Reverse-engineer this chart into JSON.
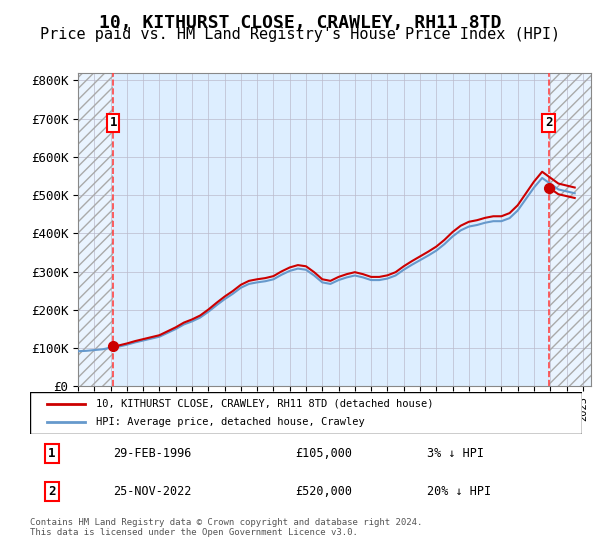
{
  "title": "10, KITHURST CLOSE, CRAWLEY, RH11 8TD",
  "subtitle": "Price paid vs. HM Land Registry's House Price Index (HPI)",
  "ylabel": "",
  "ylim": [
    0,
    820000
  ],
  "yticks": [
    0,
    100000,
    200000,
    300000,
    400000,
    500000,
    600000,
    700000,
    800000
  ],
  "ytick_labels": [
    "£0",
    "£100K",
    "£200K",
    "£300K",
    "£400K",
    "£500K",
    "£600K",
    "£700K",
    "£800K"
  ],
  "xmin": 1994.0,
  "xmax": 2025.5,
  "hpi_color": "#6699cc",
  "price_color": "#cc0000",
  "dashed_color": "#ff4444",
  "bg_color": "#ddeeff",
  "hatch_color": "#cccccc",
  "grid_color": "#bbbbcc",
  "title_fontsize": 13,
  "subtitle_fontsize": 11,
  "label1": "1",
  "label2": "2",
  "point1_x": 1996.16,
  "point1_y": 105000,
  "point2_x": 2022.9,
  "point2_y": 520000,
  "legend_line1": "10, KITHURST CLOSE, CRAWLEY, RH11 8TD (detached house)",
  "legend_line2": "HPI: Average price, detached house, Crawley",
  "anno1_date": "29-FEB-1996",
  "anno1_price": "£105,000",
  "anno1_hpi": "3% ↓ HPI",
  "anno2_date": "25-NOV-2022",
  "anno2_price": "£520,000",
  "anno2_hpi": "20% ↓ HPI",
  "footer": "Contains HM Land Registry data © Crown copyright and database right 2024.\nThis data is licensed under the Open Government Licence v3.0.",
  "hpi_data_x": [
    1994,
    1994.5,
    1995,
    1995.5,
    1996,
    1996.5,
    1997,
    1997.5,
    1998,
    1998.5,
    1999,
    1999.5,
    2000,
    2000.5,
    2001,
    2001.5,
    2002,
    2002.5,
    2003,
    2003.5,
    2004,
    2004.5,
    2005,
    2005.5,
    2006,
    2006.5,
    2007,
    2007.5,
    2008,
    2008.5,
    2009,
    2009.5,
    2010,
    2010.5,
    2011,
    2011.5,
    2012,
    2012.5,
    2013,
    2013.5,
    2014,
    2014.5,
    2015,
    2015.5,
    2016,
    2016.5,
    2017,
    2017.5,
    2018,
    2018.5,
    2019,
    2019.5,
    2020,
    2020.5,
    2021,
    2021.5,
    2022,
    2022.5,
    2023,
    2023.5,
    2024,
    2024.5
  ],
  "hpi_data_y": [
    92000,
    93000,
    95000,
    97000,
    101000,
    104000,
    109000,
    115000,
    120000,
    125000,
    130000,
    140000,
    150000,
    162000,
    170000,
    180000,
    195000,
    212000,
    228000,
    242000,
    258000,
    268000,
    272000,
    275000,
    280000,
    292000,
    302000,
    308000,
    305000,
    290000,
    272000,
    268000,
    278000,
    285000,
    290000,
    285000,
    278000,
    278000,
    282000,
    290000,
    305000,
    318000,
    330000,
    342000,
    355000,
    372000,
    392000,
    408000,
    418000,
    422000,
    428000,
    432000,
    432000,
    440000,
    460000,
    490000,
    520000,
    545000,
    530000,
    515000,
    510000,
    505000
  ],
  "price_data_x": [
    1996.16,
    2022.9
  ],
  "price_data_y": [
    105000,
    520000
  ]
}
